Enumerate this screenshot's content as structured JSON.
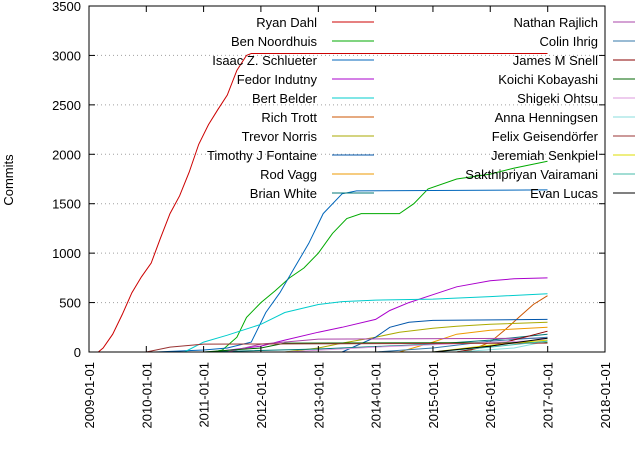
{
  "chart_data": {
    "type": "line",
    "ylabel": "Commits",
    "xlabel": "",
    "ylim": [
      0,
      3500
    ],
    "yticks": [
      0,
      500,
      1000,
      1500,
      2000,
      2500,
      3000,
      3500
    ],
    "xlim": [
      "2009-01-01",
      "2018-01-01"
    ],
    "xticks": [
      "2009-01-01",
      "2010-01-01",
      "2011-01-01",
      "2012-01-01",
      "2013-01-01",
      "2014-01-01",
      "2015-01-01",
      "2016-01-01",
      "2017-01-01",
      "2018-01-01"
    ],
    "grid": "horizontal dotted",
    "legend_position": "top, two columns",
    "series": [
      {
        "name": "Ryan Dahl",
        "color": "#cc0000",
        "points": [
          [
            "2009-03-01",
            0
          ],
          [
            "2009-04-01",
            40
          ],
          [
            "2009-06-01",
            180
          ],
          [
            "2009-08-01",
            380
          ],
          [
            "2009-10-01",
            600
          ],
          [
            "2009-12-01",
            760
          ],
          [
            "2010-02-01",
            900
          ],
          [
            "2010-04-01",
            1150
          ],
          [
            "2010-06-01",
            1400
          ],
          [
            "2010-08-01",
            1580
          ],
          [
            "2010-10-01",
            1820
          ],
          [
            "2010-12-01",
            2100
          ],
          [
            "2011-02-01",
            2300
          ],
          [
            "2011-04-01",
            2450
          ],
          [
            "2011-06-01",
            2600
          ],
          [
            "2011-08-01",
            2850
          ],
          [
            "2011-10-01",
            3000
          ],
          [
            "2011-11-01",
            3020
          ],
          [
            "2016-12-31",
            3020
          ]
        ]
      },
      {
        "name": "Ben Noordhuis",
        "color": "#00aa00",
        "points": [
          [
            "2011-03-01",
            0
          ],
          [
            "2011-05-01",
            20
          ],
          [
            "2011-08-01",
            150
          ],
          [
            "2011-10-01",
            350
          ],
          [
            "2012-01-01",
            500
          ],
          [
            "2012-04-01",
            620
          ],
          [
            "2012-07-01",
            750
          ],
          [
            "2012-10-01",
            850
          ],
          [
            "2013-01-01",
            1000
          ],
          [
            "2013-04-01",
            1200
          ],
          [
            "2013-07-01",
            1350
          ],
          [
            "2013-10-01",
            1400
          ],
          [
            "2014-06-01",
            1400
          ],
          [
            "2014-09-01",
            1500
          ],
          [
            "2014-12-01",
            1650
          ],
          [
            "2015-06-01",
            1750
          ],
          [
            "2016-01-01",
            1800
          ],
          [
            "2016-06-01",
            1860
          ],
          [
            "2016-12-31",
            1930
          ]
        ]
      },
      {
        "name": "Isaac Z. Schlueter",
        "color": "#0066bb",
        "points": [
          [
            "2010-03-01",
            0
          ],
          [
            "2011-01-01",
            20
          ],
          [
            "2011-06-01",
            40
          ],
          [
            "2011-11-01",
            100
          ],
          [
            "2012-02-01",
            400
          ],
          [
            "2012-05-01",
            600
          ],
          [
            "2012-08-01",
            850
          ],
          [
            "2012-11-01",
            1100
          ],
          [
            "2013-02-01",
            1400
          ],
          [
            "2013-06-01",
            1600
          ],
          [
            "2013-09-01",
            1630
          ],
          [
            "2016-12-31",
            1640
          ]
        ]
      },
      {
        "name": "Fedor Indutny",
        "color": "#aa00cc",
        "points": [
          [
            "2011-03-01",
            0
          ],
          [
            "2012-01-01",
            60
          ],
          [
            "2012-06-01",
            120
          ],
          [
            "2013-01-01",
            200
          ],
          [
            "2013-06-01",
            250
          ],
          [
            "2014-01-01",
            330
          ],
          [
            "2014-04-01",
            420
          ],
          [
            "2014-08-01",
            500
          ],
          [
            "2015-01-01",
            580
          ],
          [
            "2015-06-01",
            660
          ],
          [
            "2016-01-01",
            720
          ],
          [
            "2016-06-01",
            740
          ],
          [
            "2016-12-31",
            750
          ]
        ]
      },
      {
        "name": "Bert Belder",
        "color": "#00cccc",
        "points": [
          [
            "2010-09-01",
            0
          ],
          [
            "2011-01-01",
            100
          ],
          [
            "2011-06-01",
            170
          ],
          [
            "2012-01-01",
            280
          ],
          [
            "2012-06-01",
            400
          ],
          [
            "2013-01-01",
            480
          ],
          [
            "2013-06-01",
            510
          ],
          [
            "2014-01-01",
            525
          ],
          [
            "2015-01-01",
            535
          ],
          [
            "2016-01-01",
            560
          ],
          [
            "2016-12-31",
            590
          ]
        ]
      },
      {
        "name": "Rich Trott",
        "color": "#cc5500",
        "points": [
          [
            "2015-06-01",
            0
          ],
          [
            "2015-09-01",
            20
          ],
          [
            "2016-01-01",
            100
          ],
          [
            "2016-04-01",
            220
          ],
          [
            "2016-07-01",
            350
          ],
          [
            "2016-10-01",
            480
          ],
          [
            "2016-12-31",
            570
          ]
        ]
      },
      {
        "name": "Trevor Norris",
        "color": "#aaaa00",
        "points": [
          [
            "2012-06-01",
            0
          ],
          [
            "2013-01-01",
            40
          ],
          [
            "2013-06-01",
            90
          ],
          [
            "2014-01-01",
            150
          ],
          [
            "2014-06-01",
            200
          ],
          [
            "2015-01-01",
            240
          ],
          [
            "2015-06-01",
            260
          ],
          [
            "2016-01-01",
            280
          ],
          [
            "2016-12-31",
            300
          ]
        ]
      },
      {
        "name": "Timothy J Fontaine",
        "color": "#0055aa",
        "points": [
          [
            "2013-06-01",
            0
          ],
          [
            "2014-01-01",
            150
          ],
          [
            "2014-04-01",
            250
          ],
          [
            "2014-08-01",
            300
          ],
          [
            "2015-01-01",
            320
          ],
          [
            "2016-12-31",
            330
          ]
        ]
      },
      {
        "name": "Rod Vagg",
        "color": "#ee9900",
        "points": [
          [
            "2014-06-01",
            0
          ],
          [
            "2015-01-01",
            100
          ],
          [
            "2015-06-01",
            180
          ],
          [
            "2016-01-01",
            220
          ],
          [
            "2016-12-31",
            250
          ]
        ]
      },
      {
        "name": "Brian White",
        "color": "#007777",
        "points": [
          [
            "2011-01-01",
            0
          ],
          [
            "2013-01-01",
            30
          ],
          [
            "2015-01-01",
            80
          ],
          [
            "2016-01-01",
            120
          ],
          [
            "2016-12-31",
            180
          ]
        ]
      },
      {
        "name": "Nathan Rajlich",
        "color": "#aa44aa",
        "points": [
          [
            "2011-06-01",
            0
          ],
          [
            "2012-01-01",
            80
          ],
          [
            "2013-01-01",
            130
          ],
          [
            "2016-12-31",
            140
          ]
        ]
      },
      {
        "name": "Colin Ihrig",
        "color": "#3377aa",
        "points": [
          [
            "2014-01-01",
            0
          ],
          [
            "2015-01-01",
            40
          ],
          [
            "2016-01-01",
            110
          ],
          [
            "2016-12-31",
            150
          ]
        ]
      },
      {
        "name": "James M Snell",
        "color": "#880000",
        "points": [
          [
            "2015-06-01",
            0
          ],
          [
            "2016-01-01",
            60
          ],
          [
            "2016-12-31",
            210
          ]
        ]
      },
      {
        "name": "Koichi Kobayashi",
        "color": "#006600",
        "points": [
          [
            "2011-01-01",
            0
          ],
          [
            "2012-01-01",
            40
          ],
          [
            "2012-06-01",
            90
          ],
          [
            "2016-12-31",
            95
          ]
        ]
      },
      {
        "name": "Shigeki Ohtsu",
        "color": "#dd99dd",
        "points": [
          [
            "2012-06-01",
            0
          ],
          [
            "2014-01-01",
            50
          ],
          [
            "2016-12-31",
            120
          ]
        ]
      },
      {
        "name": "Anna Henningsen",
        "color": "#88dddd",
        "points": [
          [
            "2015-06-01",
            0
          ],
          [
            "2016-06-01",
            40
          ],
          [
            "2016-12-31",
            110
          ]
        ]
      },
      {
        "name": "Felix Geisendörfer",
        "color": "#993333",
        "points": [
          [
            "2010-01-01",
            0
          ],
          [
            "2010-06-01",
            50
          ],
          [
            "2011-01-01",
            80
          ],
          [
            "2016-12-31",
            90
          ]
        ]
      },
      {
        "name": "Jeremiah Senkpiel",
        "color": "#dddd00",
        "points": [
          [
            "2015-01-01",
            0
          ],
          [
            "2016-01-01",
            70
          ],
          [
            "2016-12-31",
            120
          ]
        ]
      },
      {
        "name": "Sakthipriyan Vairamani",
        "color": "#44bbaa",
        "points": [
          [
            "2015-01-01",
            0
          ],
          [
            "2016-01-01",
            50
          ],
          [
            "2016-12-31",
            110
          ]
        ]
      },
      {
        "name": "Evan Lucas",
        "color": "#000000",
        "points": [
          [
            "2015-01-01",
            0
          ],
          [
            "2016-01-01",
            60
          ],
          [
            "2016-12-31",
            140
          ]
        ]
      }
    ]
  }
}
